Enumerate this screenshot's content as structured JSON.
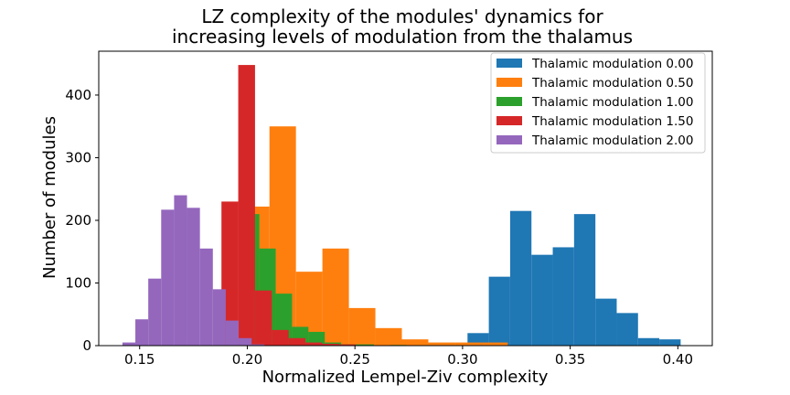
{
  "chart_data": {
    "type": "bar",
    "title_line1": "LZ complexity of the modules' dynamics for",
    "title_line2": "increasing levels of modulation from the thalamus",
    "xlabel": "Normalized Lempel-Ziv complexity",
    "ylabel": "Number of modules",
    "xlim": [
      0.131,
      0.416
    ],
    "ylim": [
      0,
      470
    ],
    "xticks": [
      {
        "value": 0.15,
        "label": "0.15"
      },
      {
        "value": 0.2,
        "label": "0.20"
      },
      {
        "value": 0.25,
        "label": "0.25"
      },
      {
        "value": 0.3,
        "label": "0.30"
      },
      {
        "value": 0.35,
        "label": "0.35"
      },
      {
        "value": 0.4,
        "label": "0.40"
      }
    ],
    "yticks": [
      {
        "value": 0,
        "label": "0"
      },
      {
        "value": 100,
        "label": "100"
      },
      {
        "value": 200,
        "label": "200"
      },
      {
        "value": 300,
        "label": "300"
      },
      {
        "value": 400,
        "label": "400"
      }
    ],
    "legend_position": "top-right",
    "grid": false,
    "series": [
      {
        "name": "Thalamic modulation 0.00",
        "color": "#1f77b4",
        "bins": [
          0.2924,
          0.3023,
          0.3122,
          0.3221,
          0.332,
          0.3419,
          0.3518,
          0.3617,
          0.3716,
          0.3815,
          0.3914,
          0.4013
        ],
        "counts": [
          0,
          20,
          110,
          215,
          145,
          157,
          210,
          75,
          52,
          12,
          10
        ]
      },
      {
        "name": "Thalamic modulation 0.50",
        "color": "#ff7f0e",
        "bins": [
          0.198,
          0.2103,
          0.2226,
          0.2349,
          0.2472,
          0.2595,
          0.2718,
          0.2841,
          0.2964,
          0.3087,
          0.321
        ],
        "counts": [
          222,
          350,
          118,
          155,
          60,
          28,
          10,
          5,
          5,
          5
        ]
      },
      {
        "name": "Thalamic modulation 1.00",
        "color": "#2ca02c",
        "bins": [
          0.198,
          0.2056,
          0.2132,
          0.2208,
          0.2284,
          0.236,
          0.2436,
          0.2512,
          0.2588,
          0.2664,
          0.274
        ],
        "counts": [
          210,
          155,
          83,
          30,
          22,
          5,
          2,
          2,
          0,
          1
        ]
      },
      {
        "name": "Thalamic modulation 1.50",
        "color": "#d62728",
        "bins": [
          0.188,
          0.1958,
          0.2036,
          0.2114,
          0.2192,
          0.227,
          0.2348,
          0.2426,
          0.2504
        ],
        "counts": [
          230,
          448,
          88,
          25,
          12,
          5,
          3,
          2
        ]
      },
      {
        "name": "Thalamic modulation 2.00",
        "color": "#9467bd",
        "bins": [
          0.142,
          0.148,
          0.154,
          0.16,
          0.166,
          0.172,
          0.178,
          0.184,
          0.19,
          0.196,
          0.202,
          0.208
        ],
        "counts": [
          5,
          42,
          107,
          217,
          240,
          220,
          155,
          90,
          40,
          12,
          2
        ]
      }
    ]
  }
}
